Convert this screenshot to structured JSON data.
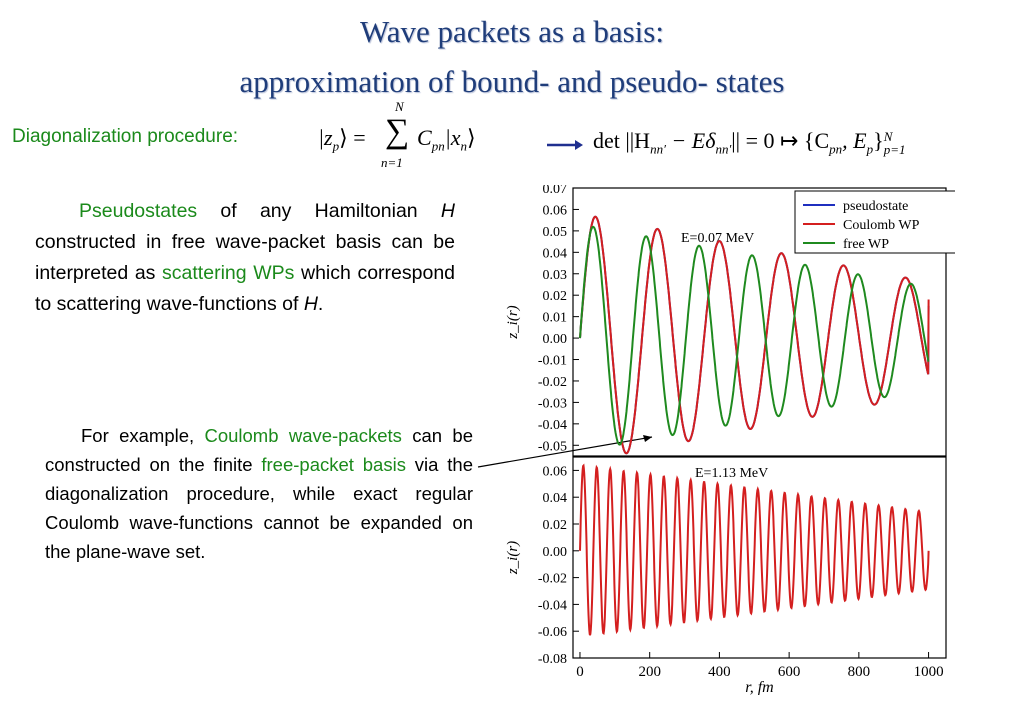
{
  "title": {
    "line1": "Wave packets as a basis:",
    "line2": "approximation of bound- and pseudo- states"
  },
  "diag": {
    "label": "Diagonalization procedure:",
    "formula1": {
      "lhs": "|z",
      "lhs_sub": "p",
      "lhs_close": "⟩ =",
      "sum": "∑",
      "sum_top": "N",
      "sum_bottom": "n=1",
      "C": "C",
      "C_sub": "pn",
      "x": "|x",
      "x_sub": "n",
      "close": "⟩"
    },
    "arrow": "⟶",
    "formula2": "det ||H",
    "formula2_sub": "nn′",
    "formula2_mid": " − Eδ",
    "formula2_sub2": "nn′",
    "formula2_end": "|| = 0 ↦ {C",
    "formula2_pn": "pn",
    "formula2_comma": ", E",
    "formula2_p": "p",
    "formula2_close": "}",
    "formula2_sup": "N",
    "formula2_sub3": "p=1"
  },
  "para1": {
    "t1": "Pseudostates",
    "t2": " of any Hamiltonian ",
    "t3": "H",
    "t4": " constructed in free wave-packet basis  can be interpreted as ",
    "t5": "scattering WPs",
    "t6": " which correspond to scattering wave-functions of ",
    "t7": "H",
    "t8": "."
  },
  "para2": {
    "t1": "For example, ",
    "t2": "Coulomb wave-packets",
    "t3": " can be constructed on the finite ",
    "t4": "free-packet basis",
    "t5": "  via the diagonalization procedure, while exact regular Coulomb wave-functions cannot be expanded on the plane-wave set."
  },
  "colors": {
    "title": "#1f3d7a",
    "green": "#1b8a1b",
    "pseudostate": "#1f2fbf",
    "coulomb": "#d41f1f",
    "free": "#1f8a1f",
    "arrow": "#1f2f8f"
  },
  "chart_data": [
    {
      "type": "line",
      "annotation": "E=0.07 MeV",
      "ylabel": "z_i(r)",
      "xlim": [
        -20,
        1050
      ],
      "ylim": [
        -0.055,
        0.07
      ],
      "yticks": [
        "0.07",
        "0.06",
        "0.05",
        "0.04",
        "0.03",
        "0.02",
        "0.01",
        "0.00",
        "-0.01",
        "-0.02",
        "-0.03",
        "-0.04",
        "-0.05"
      ],
      "legend_position": "top-right",
      "series": [
        {
          "name": "pseudostate",
          "color": "#1f2fbf",
          "model": {
            "kind": "decaying-sine",
            "amplitude": 0.058,
            "phase_at_0": 0.0,
            "period": 178,
            "r_end": 1000,
            "end_value": 0.015
          }
        },
        {
          "name": "Coulomb WP",
          "color": "#d41f1f",
          "model": {
            "kind": "decaying-sine",
            "amplitude": 0.058,
            "phase_at_0": 0.0,
            "period": 178,
            "r_end": 1000,
            "end_value": 0.018
          }
        },
        {
          "name": "free WP",
          "color": "#1f8a1f",
          "model": {
            "kind": "decaying-sine",
            "amplitude": 0.053,
            "phase_at_0": 0.0,
            "period": 152,
            "r_end": 1000,
            "end_value": -0.011
          }
        }
      ]
    },
    {
      "type": "line",
      "annotation": "E=1.13 MeV",
      "ylabel": "z_i(r)",
      "xlabel": "r, fm",
      "xlim": [
        -20,
        1050
      ],
      "ylim": [
        -0.08,
        0.07
      ],
      "xticks": [
        "0",
        "200",
        "400",
        "600",
        "800",
        "1000"
      ],
      "yticks": [
        "0.06",
        "0.04",
        "0.02",
        "0.00",
        "-0.02",
        "-0.04",
        "-0.06",
        "-0.08"
      ],
      "series": [
        {
          "name": "Coulomb WP",
          "color": "#d41f1f",
          "model": {
            "kind": "decaying-sine",
            "amplitude": 0.064,
            "phase_at_0": 0.0,
            "period": 38.5,
            "r_end": 1000,
            "end_value": 0.0
          }
        }
      ]
    }
  ]
}
